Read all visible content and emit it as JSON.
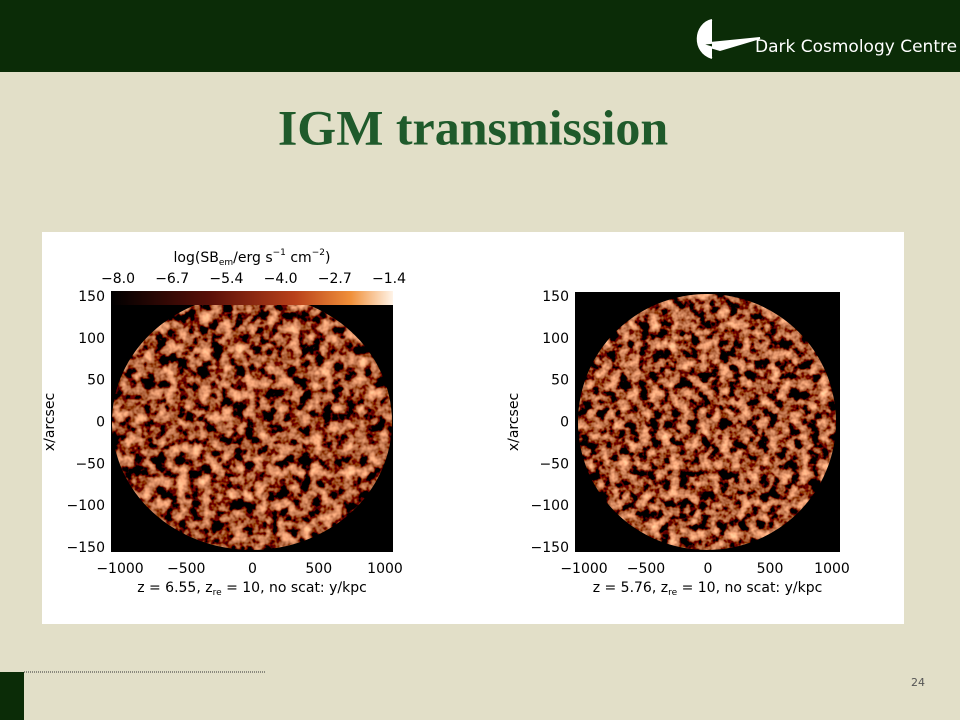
{
  "header": {
    "logo": "Dark Cosmology Centre"
  },
  "title": "IGM transmission",
  "figure": {
    "colorbar": {
      "label": [
        "log(SB",
        "em",
        "/erg s",
        "−1",
        " cm",
        "−2",
        ")"
      ],
      "ticks": [
        "−8.0",
        "−6.7",
        "−5.4",
        "−4.0",
        "−2.7",
        "−1.4"
      ]
    },
    "panels": [
      {
        "ylabel": "x/arcsec",
        "yticks": [
          "150",
          "100",
          "50",
          "0",
          "−50",
          "−100",
          "−150"
        ],
        "xticks": [
          "−1000",
          "−500",
          "0",
          "500",
          "1000"
        ],
        "xlabel": [
          "z = 6.55, z",
          "re",
          " = 10, no scat: y/kpc"
        ]
      },
      {
        "ylabel": "x/arcsec",
        "yticks": [
          "150",
          "100",
          "50",
          "0",
          "−50",
          "−100",
          "−150"
        ],
        "xticks": [
          "−1000",
          "−500",
          "0",
          "500",
          "1000"
        ],
        "xlabel": [
          "z = 5.76, z",
          "re",
          " = 10, no scat: y/kpc"
        ]
      }
    ]
  },
  "page_number": "24"
}
